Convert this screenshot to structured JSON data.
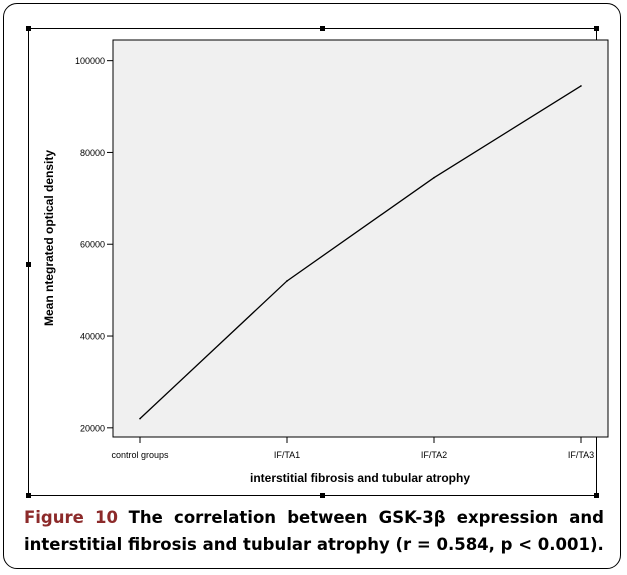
{
  "caption": {
    "label": "Figure 10",
    "text": "The correlation between GSK-3β expression and interstitial fibrosis and tubular atrophy (r = 0.584, p < 0.001).",
    "label_color": "#8c2a2a"
  },
  "chart_data": {
    "type": "line",
    "title": "",
    "xlabel": "interstitial fibrosis and tubular atrophy",
    "ylabel": "Mean ntegrated optical density",
    "categories": [
      "control groups",
      "IF/TA1",
      "IF/TA2",
      "IF/TA3"
    ],
    "series": [
      {
        "values": [
          22000,
          52000,
          74500,
          94500
        ]
      }
    ],
    "yticks": [
      20000,
      40000,
      60000,
      80000,
      100000
    ],
    "ytick_labels": [
      "20000",
      "40000",
      "60000",
      "80000",
      "100000"
    ],
    "ylim": [
      18000,
      104500
    ],
    "grid": false,
    "plot_background": "#f0f0f0",
    "line_color": "#000000"
  }
}
